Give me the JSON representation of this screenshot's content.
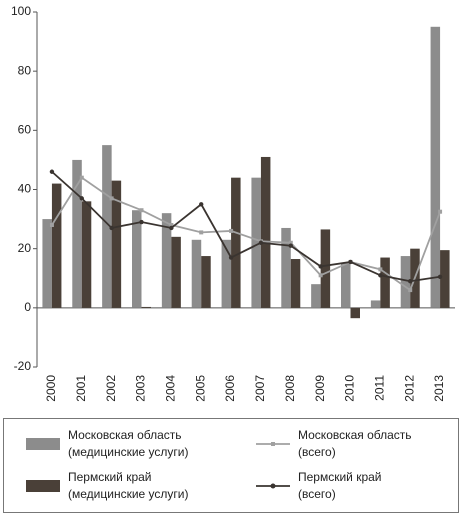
{
  "chart_data": {
    "type": "bar_line",
    "categories": [
      "2000",
      "2001",
      "2002",
      "2003",
      "2004",
      "2005",
      "2006",
      "2007",
      "2008",
      "2009",
      "2010",
      "2011",
      "2012",
      "2013"
    ],
    "ylim": [
      -20,
      100
    ],
    "yticks": [
      -20,
      0,
      20,
      40,
      60,
      80,
      100
    ],
    "series": [
      {
        "name": "Московская область\n(медицинские услуги)",
        "kind": "bar",
        "color": "#8c8c8c",
        "values": [
          30,
          50,
          55,
          33,
          32,
          23,
          23,
          44,
          27,
          8,
          15,
          2.5,
          17.5,
          95
        ]
      },
      {
        "name": "Пермский край\n(медицинские услуги)",
        "kind": "bar",
        "color": "#4a4038",
        "values": [
          42,
          36,
          43,
          0.3,
          24,
          17.5,
          44,
          51,
          16.5,
          26.5,
          -3.5,
          17,
          20,
          19.5
        ]
      },
      {
        "name": "Московская область\n(всего)",
        "kind": "line",
        "color": "#a0a0a0",
        "values": [
          28,
          44,
          37,
          33,
          28,
          25.5,
          26,
          22.5,
          22,
          11,
          15.5,
          13,
          6,
          32.5
        ]
      },
      {
        "name": "Пермский край\n(всего)",
        "kind": "line",
        "color": "#3a3430",
        "values": [
          46,
          37,
          27,
          29,
          27,
          35,
          17,
          22,
          21,
          14,
          15.5,
          11,
          9,
          10.5
        ]
      }
    ]
  }
}
